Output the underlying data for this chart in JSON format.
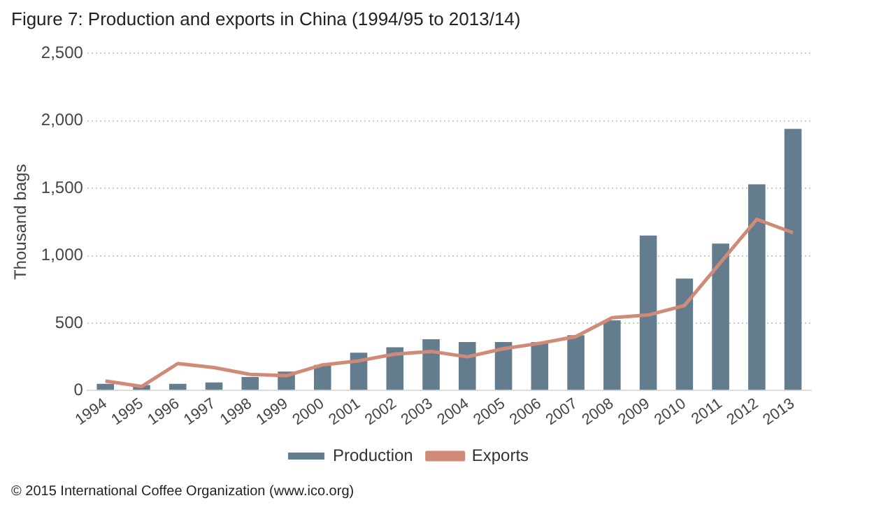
{
  "chart_data": {
    "type": "bar",
    "title": "Figure 7: Production and exports in China (1994/95 to 2013/14)",
    "ylabel": "Thousand bags",
    "categories": [
      "1994",
      "1995",
      "1996",
      "1997",
      "1998",
      "1999",
      "2000",
      "2001",
      "2002",
      "2003",
      "2004",
      "2005",
      "2006",
      "2007",
      "2008",
      "2009",
      "2010",
      "2011",
      "2012",
      "2013"
    ],
    "series": [
      {
        "name": "Production",
        "color": "#647d8e",
        "values": [
          50,
          40,
          50,
          60,
          100,
          140,
          190,
          280,
          320,
          380,
          360,
          360,
          360,
          410,
          520,
          1150,
          830,
          1090,
          1530,
          1940
        ]
      },
      {
        "name": "Exports",
        "type": "line",
        "color": "#d08a78",
        "values": [
          70,
          30,
          200,
          170,
          120,
          110,
          190,
          220,
          270,
          290,
          250,
          310,
          350,
          400,
          540,
          560,
          630,
          950,
          1270,
          1170
        ]
      }
    ],
    "ylim": [
      0,
      2500
    ],
    "yticks": [
      {
        "value": 0,
        "label": "0"
      },
      {
        "value": 500,
        "label": "500"
      },
      {
        "value": 1000,
        "label": "1,000"
      },
      {
        "value": 1500,
        "label": "1,500"
      },
      {
        "value": 2000,
        "label": "2,000"
      },
      {
        "value": 2500,
        "label": "2,500"
      }
    ],
    "grid": "y",
    "legend": "bottom",
    "marker": "none",
    "annotations": [
      "© 2015 International Coffee Organization (www.ico.org)"
    ]
  }
}
